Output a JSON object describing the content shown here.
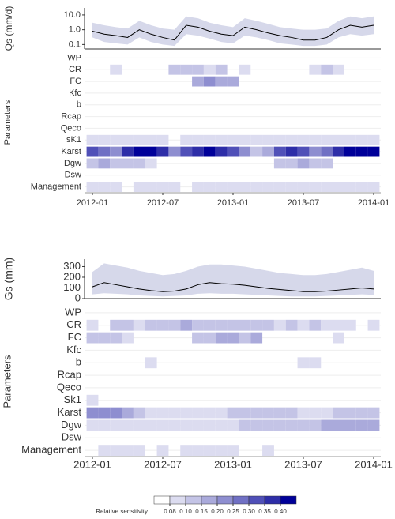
{
  "chart_data": [
    {
      "type": "sensitivity",
      "ylabel": "Qs (mm/d)",
      "log_scale": true,
      "line_color": "#000000",
      "band_color": "#d6d8ea",
      "x": [
        "2012-01",
        "2012-02",
        "2012-03",
        "2012-04",
        "2012-05",
        "2012-06",
        "2012-07",
        "2012-08",
        "2012-09",
        "2012-10",
        "2012-11",
        "2012-12",
        "2013-01",
        "2013-02",
        "2013-03",
        "2013-04",
        "2013-05",
        "2013-06",
        "2013-07",
        "2013-08",
        "2013-09",
        "2013-10",
        "2013-11",
        "2013-12",
        "2014-01"
      ],
      "values": [
        0.8,
        0.5,
        0.4,
        0.3,
        1,
        0.5,
        0.3,
        0.2,
        2,
        1.5,
        0.8,
        0.5,
        0.4,
        1.5,
        1,
        0.6,
        0.4,
        0.3,
        0.2,
        0.2,
        0.3,
        1,
        2,
        1.5,
        2
      ],
      "band_lower": [
        0.3,
        0.15,
        0.12,
        0.1,
        0.3,
        0.15,
        0.1,
        0.08,
        0.5,
        0.4,
        0.25,
        0.15,
        0.12,
        0.4,
        0.3,
        0.2,
        0.12,
        0.1,
        0.08,
        0.08,
        0.1,
        0.3,
        0.5,
        0.4,
        0.5
      ],
      "band_upper": [
        3,
        2,
        1.5,
        1.2,
        4,
        2,
        1.2,
        1,
        8,
        6,
        3,
        2,
        1.5,
        6,
        4,
        2.5,
        1.5,
        1.2,
        1,
        1,
        1.2,
        4,
        8,
        6,
        8
      ],
      "ylim": [
        0.05,
        30
      ],
      "yticks": [
        0.1,
        {
          "value": 1,
          "label": "1.0"
        },
        {
          "value": 10,
          "label": "10.0"
        }
      ],
      "xticks": [
        "2012-01",
        "2012-07",
        "2013-01",
        "2013-07",
        "2014-01"
      ],
      "heatmap_label": "Parameters",
      "parameters": [
        "WP",
        "CR",
        "FC",
        "Kfc",
        "b",
        "Rcap",
        "Qeco",
        "sK1",
        "Karst",
        "Dgw",
        "Dsw",
        "Management"
      ],
      "heatmap_values": [
        [
          0,
          0,
          0,
          0,
          0,
          0,
          0,
          0,
          0,
          0,
          0,
          0,
          0,
          0,
          0,
          0,
          0,
          0,
          0,
          0,
          0,
          0,
          0,
          0,
          0
        ],
        [
          0,
          0,
          0.09,
          0,
          0,
          0,
          0,
          0.1,
          0.12,
          0.1,
          0.09,
          0.1,
          0,
          0.09,
          0,
          0,
          0,
          0,
          0,
          0.09,
          0.1,
          0.09,
          0,
          0,
          0
        ],
        [
          0,
          0,
          0,
          0,
          0,
          0,
          0,
          0,
          0,
          0.15,
          0.2,
          0.18,
          0.15,
          0,
          0,
          0,
          0,
          0,
          0,
          0,
          0,
          0,
          0,
          0,
          0
        ],
        [
          0,
          0,
          0,
          0,
          0,
          0,
          0,
          0,
          0,
          0,
          0,
          0,
          0,
          0,
          0,
          0,
          0,
          0,
          0,
          0,
          0,
          0,
          0,
          0,
          0
        ],
        [
          0,
          0,
          0,
          0,
          0,
          0,
          0,
          0,
          0,
          0,
          0,
          0,
          0,
          0,
          0,
          0,
          0,
          0,
          0,
          0,
          0,
          0,
          0,
          0,
          0
        ],
        [
          0,
          0,
          0,
          0,
          0,
          0,
          0,
          0,
          0,
          0,
          0,
          0,
          0,
          0,
          0,
          0,
          0,
          0,
          0,
          0,
          0,
          0,
          0,
          0,
          0
        ],
        [
          0,
          0,
          0,
          0,
          0,
          0,
          0,
          0,
          0,
          0,
          0,
          0,
          0,
          0,
          0,
          0,
          0,
          0,
          0,
          0,
          0,
          0,
          0,
          0,
          0
        ],
        [
          0.09,
          0.09,
          0.09,
          0.09,
          0.09,
          0.09,
          0.09,
          0,
          0.09,
          0.09,
          0.09,
          0.09,
          0.09,
          0.09,
          0.09,
          0.09,
          0.09,
          0.09,
          0.09,
          0.09,
          0.09,
          0.09,
          0.09,
          0.09,
          0.09
        ],
        [
          0.3,
          0.25,
          0.2,
          0.35,
          0.4,
          0.4,
          0.35,
          0.2,
          0.3,
          0.35,
          0.4,
          0.35,
          0.3,
          0.2,
          0.12,
          0.15,
          0.3,
          0.35,
          0.3,
          0.2,
          0.25,
          0.35,
          0.4,
          0.4,
          0.4
        ],
        [
          0.12,
          0.15,
          0.12,
          0.12,
          0.1,
          0.09,
          0,
          0,
          0,
          0,
          0,
          0,
          0,
          0,
          0,
          0,
          0.12,
          0.12,
          0.15,
          0.12,
          0.1,
          0,
          0,
          0,
          0
        ],
        [
          0,
          0,
          0,
          0,
          0,
          0,
          0,
          0,
          0,
          0,
          0,
          0,
          0,
          0,
          0,
          0,
          0,
          0,
          0,
          0,
          0,
          0,
          0,
          0,
          0
        ],
        [
          0.09,
          0.09,
          0.09,
          0,
          0.09,
          0.09,
          0.09,
          0.09,
          0,
          0.09,
          0.09,
          0.09,
          0.09,
          0.09,
          0.09,
          0.09,
          0.09,
          0.09,
          0.09,
          0.09,
          0.09,
          0.09,
          0.09,
          0.09,
          0.09
        ]
      ]
    },
    {
      "type": "sensitivity",
      "ylabel": "Gs (mm)",
      "log_scale": false,
      "line_color": "#000000",
      "band_color": "#d6d8ea",
      "x": [
        "2012-01",
        "2012-02",
        "2012-03",
        "2012-04",
        "2012-05",
        "2012-06",
        "2012-07",
        "2012-08",
        "2012-09",
        "2012-10",
        "2012-11",
        "2012-12",
        "2013-01",
        "2013-02",
        "2013-03",
        "2013-04",
        "2013-05",
        "2013-06",
        "2013-07",
        "2013-08",
        "2013-09",
        "2013-10",
        "2013-11",
        "2013-12",
        "2014-01"
      ],
      "values": [
        110,
        150,
        130,
        110,
        90,
        75,
        65,
        70,
        90,
        130,
        150,
        140,
        135,
        125,
        110,
        95,
        85,
        75,
        65,
        65,
        70,
        80,
        90,
        100,
        90
      ],
      "band_lower": [
        40,
        50,
        45,
        40,
        30,
        25,
        20,
        25,
        30,
        45,
        50,
        45,
        45,
        40,
        35,
        30,
        25,
        20,
        20,
        20,
        25,
        30,
        35,
        40,
        35
      ],
      "band_upper": [
        250,
        330,
        310,
        290,
        260,
        240,
        220,
        230,
        260,
        300,
        320,
        320,
        310,
        300,
        280,
        260,
        240,
        230,
        220,
        220,
        230,
        250,
        270,
        290,
        260
      ],
      "ylim": [
        0,
        370
      ],
      "yticks": [
        0,
        100,
        200,
        300
      ],
      "xticks": [
        "2012-01",
        "2012-07",
        "2013-01",
        "2013-07",
        "2014-01"
      ],
      "heatmap_label": "Parameters",
      "parameters": [
        "WP",
        "CR",
        "FC",
        "Kfc",
        "b",
        "Rcap",
        "Qeco",
        "Sk1",
        "Karst",
        "Dgw",
        "Dsw",
        "Management"
      ],
      "heatmap_values": [
        [
          0,
          0,
          0,
          0,
          0,
          0,
          0,
          0,
          0,
          0,
          0,
          0,
          0,
          0,
          0,
          0,
          0,
          0,
          0,
          0,
          0,
          0,
          0,
          0,
          0
        ],
        [
          0.09,
          0,
          0.1,
          0.1,
          0.09,
          0.1,
          0.12,
          0.12,
          0.15,
          0.12,
          0.12,
          0.12,
          0.1,
          0.1,
          0.12,
          0.1,
          0.09,
          0.1,
          0.09,
          0.1,
          0.09,
          0.09,
          0.09,
          0,
          0.09
        ],
        [
          0.12,
          0.12,
          0.12,
          0.09,
          0,
          0,
          0,
          0,
          0,
          0.12,
          0.12,
          0.15,
          0.15,
          0.12,
          0.15,
          0,
          0,
          0,
          0,
          0,
          0,
          0.09,
          0,
          0,
          0
        ],
        [
          0,
          0,
          0,
          0,
          0,
          0,
          0,
          0,
          0,
          0,
          0,
          0,
          0,
          0,
          0,
          0,
          0,
          0,
          0,
          0,
          0,
          0,
          0,
          0,
          0
        ],
        [
          0,
          0,
          0,
          0,
          0,
          0.09,
          0,
          0,
          0,
          0,
          0,
          0,
          0,
          0,
          0,
          0,
          0,
          0,
          0.09,
          0.09,
          0,
          0,
          0,
          0,
          0
        ],
        [
          0,
          0,
          0,
          0,
          0,
          0,
          0,
          0,
          0,
          0,
          0,
          0,
          0,
          0,
          0,
          0,
          0,
          0,
          0,
          0,
          0,
          0,
          0,
          0,
          0
        ],
        [
          0,
          0,
          0,
          0,
          0,
          0,
          0,
          0,
          0,
          0,
          0,
          0,
          0,
          0,
          0,
          0,
          0,
          0,
          0,
          0,
          0,
          0,
          0,
          0,
          0
        ],
        [
          0.09,
          0,
          0,
          0,
          0,
          0,
          0,
          0,
          0,
          0,
          0,
          0,
          0,
          0,
          0,
          0,
          0,
          0,
          0,
          0,
          0,
          0,
          0,
          0,
          0
        ],
        [
          0.2,
          0.2,
          0.2,
          0.15,
          0.1,
          0.09,
          0.09,
          0.09,
          0.09,
          0.09,
          0.09,
          0.09,
          0.12,
          0.12,
          0.12,
          0.12,
          0.12,
          0.12,
          0.09,
          0.09,
          0.09,
          0.12,
          0.12,
          0.12,
          0.12
        ],
        [
          0.09,
          0.09,
          0.09,
          0.09,
          0.09,
          0.09,
          0.09,
          0.09,
          0.09,
          0.09,
          0.09,
          0.09,
          0.09,
          0.12,
          0.12,
          0.12,
          0.12,
          0.12,
          0.12,
          0.12,
          0.15,
          0.15,
          0.15,
          0.15,
          0.15
        ],
        [
          0,
          0,
          0,
          0,
          0,
          0,
          0,
          0,
          0,
          0,
          0,
          0,
          0,
          0,
          0,
          0,
          0,
          0,
          0,
          0,
          0,
          0,
          0,
          0,
          0
        ],
        [
          0,
          0.09,
          0.09,
          0.09,
          0.09,
          0,
          0.09,
          0,
          0.09,
          0.09,
          0.09,
          0.09,
          0.09,
          0,
          0,
          0.09,
          0,
          0,
          0,
          0,
          0,
          0,
          0,
          0,
          0
        ]
      ]
    }
  ],
  "legend": {
    "title": "Relative sensitivity",
    "breaks": [
      0.08,
      {
        "value": 0.1,
        "label": "0.10"
      },
      0.15,
      {
        "value": 0.2,
        "label": "0.20"
      },
      0.25,
      {
        "value": 0.3,
        "label": "0.30"
      },
      0.35,
      {
        "value": 0.4,
        "label": "0.40"
      }
    ],
    "colors": [
      "#ffffff",
      "#dcdcf0",
      "#c4c4e6",
      "#aaaadb",
      "#8e8ed0",
      "#7070c4",
      "#5050b8",
      "#2e2ea8",
      "#000099"
    ]
  }
}
